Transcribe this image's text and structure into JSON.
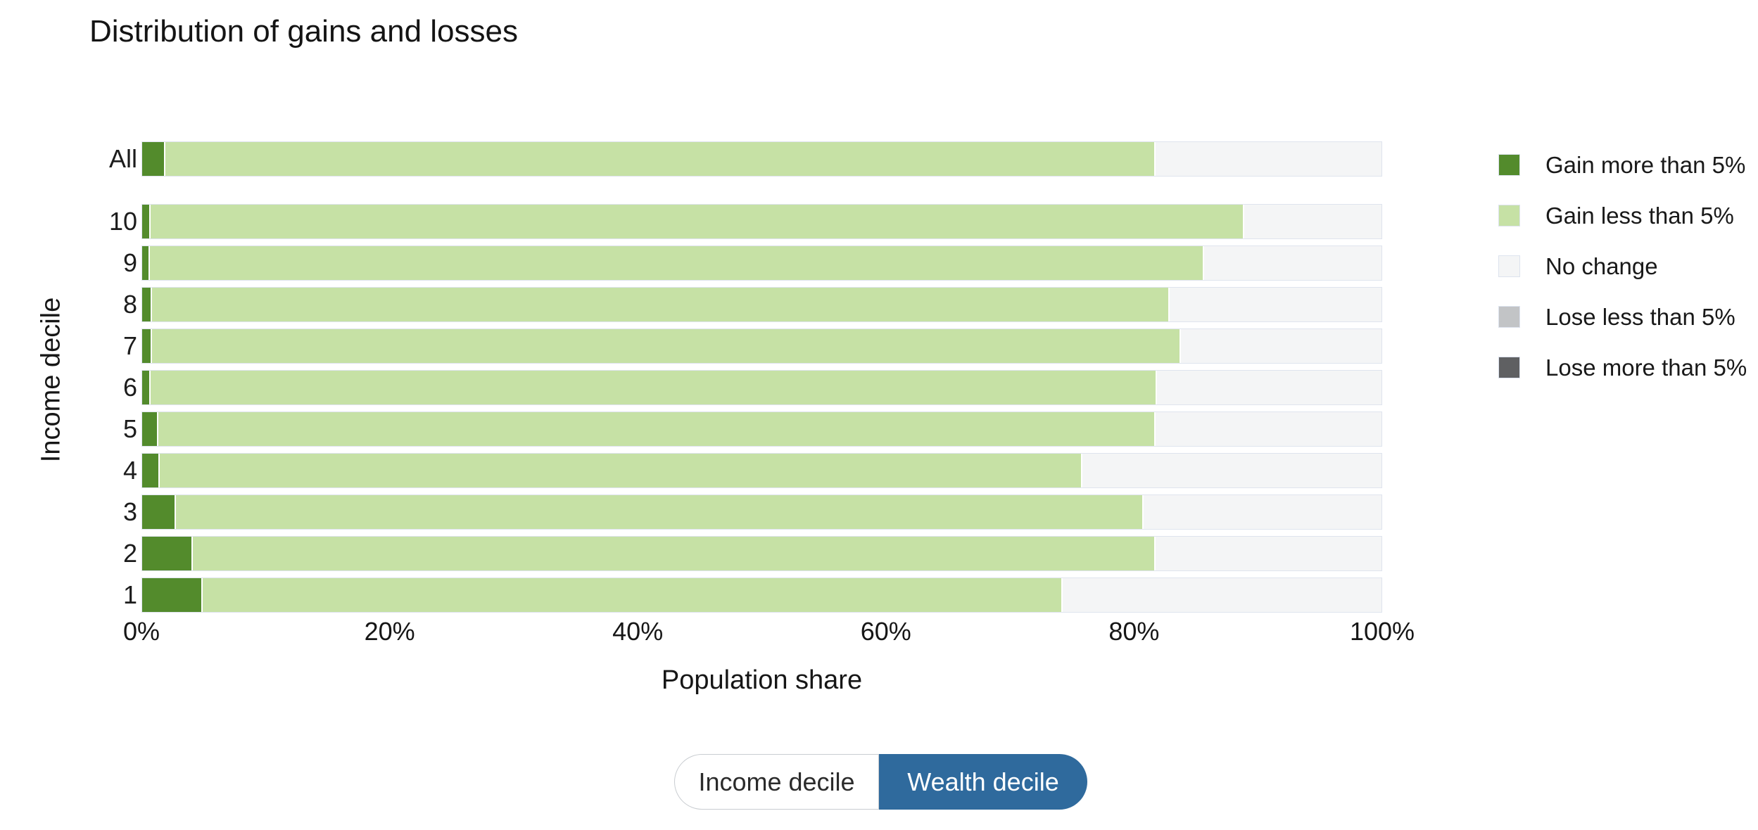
{
  "title": "Distribution of gains and losses",
  "chart_data": {
    "type": "bar",
    "orientation": "horizontal",
    "stacked": true,
    "title": "Distribution of gains and losses",
    "xlabel": "Population share",
    "ylabel": "Income decile",
    "xlim": [
      0,
      100
    ],
    "x_tick_labels": [
      "0%",
      "20%",
      "40%",
      "60%",
      "80%",
      "100%"
    ],
    "grid": false,
    "legend_position": "right",
    "categories": [
      "All",
      "10",
      "9",
      "8",
      "7",
      "6",
      "5",
      "4",
      "3",
      "2",
      "1"
    ],
    "series": [
      {
        "name": "Gain more than 5%",
        "color": "#538b2c",
        "values": [
          1.9,
          0.7,
          0.6,
          0.8,
          0.8,
          0.7,
          1.3,
          1.4,
          2.7,
          4.1,
          4.9
        ]
      },
      {
        "name": "Gain less than 5%",
        "color": "#c6e1a5",
        "values": [
          79.8,
          88.1,
          85.0,
          82.0,
          82.9,
          81.1,
          80.4,
          74.4,
          78.0,
          77.6,
          69.3
        ]
      },
      {
        "name": "No change",
        "color": "#f4f5f6",
        "values": [
          18.3,
          11.2,
          14.4,
          17.2,
          16.3,
          18.2,
          18.3,
          24.2,
          19.3,
          18.3,
          25.8
        ]
      },
      {
        "name": "Lose less than 5%",
        "color": "#c2c4c6",
        "values": [
          0,
          0,
          0,
          0,
          0,
          0,
          0,
          0,
          0,
          0,
          0
        ]
      },
      {
        "name": "Lose more than 5%",
        "color": "#5f6062",
        "values": [
          0,
          0,
          0,
          0,
          0,
          0,
          0,
          0,
          0,
          0,
          0
        ]
      }
    ]
  },
  "toggle": {
    "options": [
      {
        "label": "Income decile",
        "selected": false
      },
      {
        "label": "Wealth decile",
        "selected": true
      }
    ]
  },
  "colors": {
    "accent_blue": "#2f6a9d",
    "bar_border": "#dfe4ee",
    "swatch_border": "#dde3ee"
  }
}
